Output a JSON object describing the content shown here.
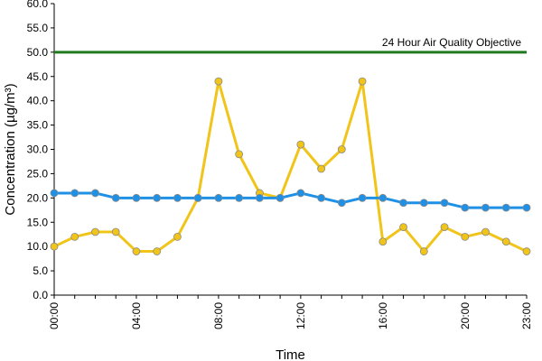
{
  "chart_data": {
    "type": "line",
    "xlabel": "Time",
    "ylabel": "Concentration (µg/m³)",
    "ylim": [
      0,
      60
    ],
    "y_ticks": [
      "0.0",
      "5.0",
      "10.0",
      "15.0",
      "20.0",
      "25.0",
      "30.0",
      "35.0",
      "40.0",
      "45.0",
      "50.0",
      "55.0",
      "60.0"
    ],
    "x_tick_labels": [
      "00:00",
      "04:00",
      "08:00",
      "12:00",
      "16:00",
      "20:00",
      "23:00"
    ],
    "x_tick_hours": [
      0,
      4,
      8,
      12,
      16,
      20,
      23
    ],
    "x": [
      0,
      1,
      2,
      3,
      4,
      5,
      6,
      7,
      8,
      9,
      10,
      11,
      12,
      13,
      14,
      15,
      16,
      17,
      18,
      19,
      20,
      21,
      22,
      23
    ],
    "grid": false,
    "objective": {
      "label": "24 Hour Air Quality Objective",
      "value": 50,
      "color": "#1f7a1f"
    },
    "series": [
      {
        "color": "#f0c419",
        "values": [
          10,
          12,
          13,
          13,
          9,
          9,
          12,
          20,
          44,
          29,
          21,
          20,
          31,
          26,
          30,
          44,
          11,
          14,
          9,
          14,
          12,
          13,
          11,
          9
        ]
      },
      {
        "color": "#1e90e6",
        "values": [
          21,
          21,
          21,
          20,
          20,
          20,
          20,
          20,
          20,
          20,
          20,
          20,
          21,
          20,
          19,
          20,
          20,
          19,
          19,
          19,
          18,
          18,
          18,
          18
        ]
      }
    ]
  }
}
